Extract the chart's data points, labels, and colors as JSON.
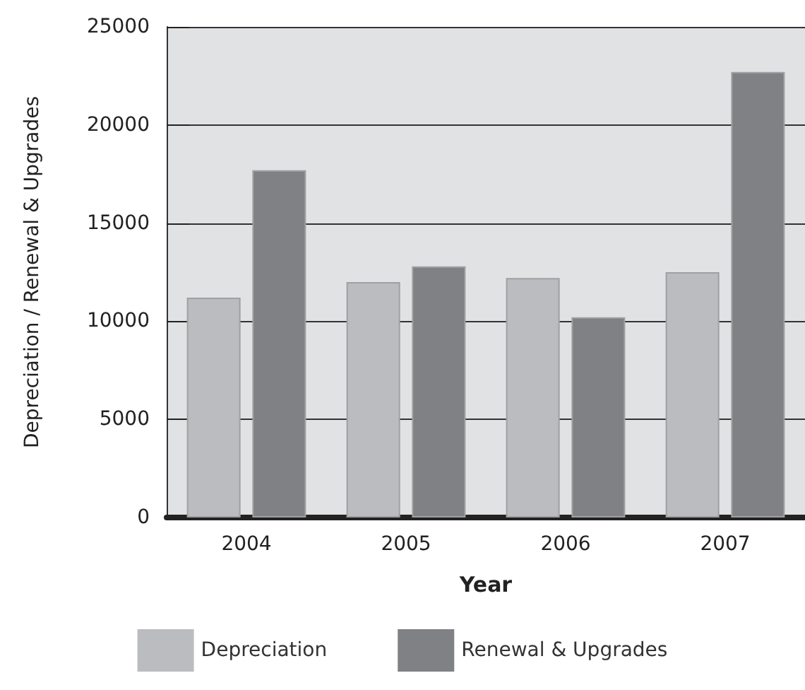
{
  "chart_data": {
    "type": "bar",
    "xlabel": "Year",
    "ylabel": "Depreciation / Renewal & Upgrades",
    "categories": [
      "2004",
      "2005",
      "2006",
      "2007"
    ],
    "series": [
      {
        "name": "Depreciation",
        "color": "#bbbcc0",
        "values": [
          11200,
          12000,
          12200,
          12500
        ]
      },
      {
        "name": "Renewal & Upgrades",
        "color": "#808184",
        "values": [
          17700,
          12800,
          10200,
          22700
        ]
      }
    ],
    "ylim": [
      0,
      25000
    ],
    "yticks": [
      0,
      5000,
      10000,
      15000,
      20000,
      25000
    ],
    "grid": "y",
    "legend": "bottom"
  }
}
